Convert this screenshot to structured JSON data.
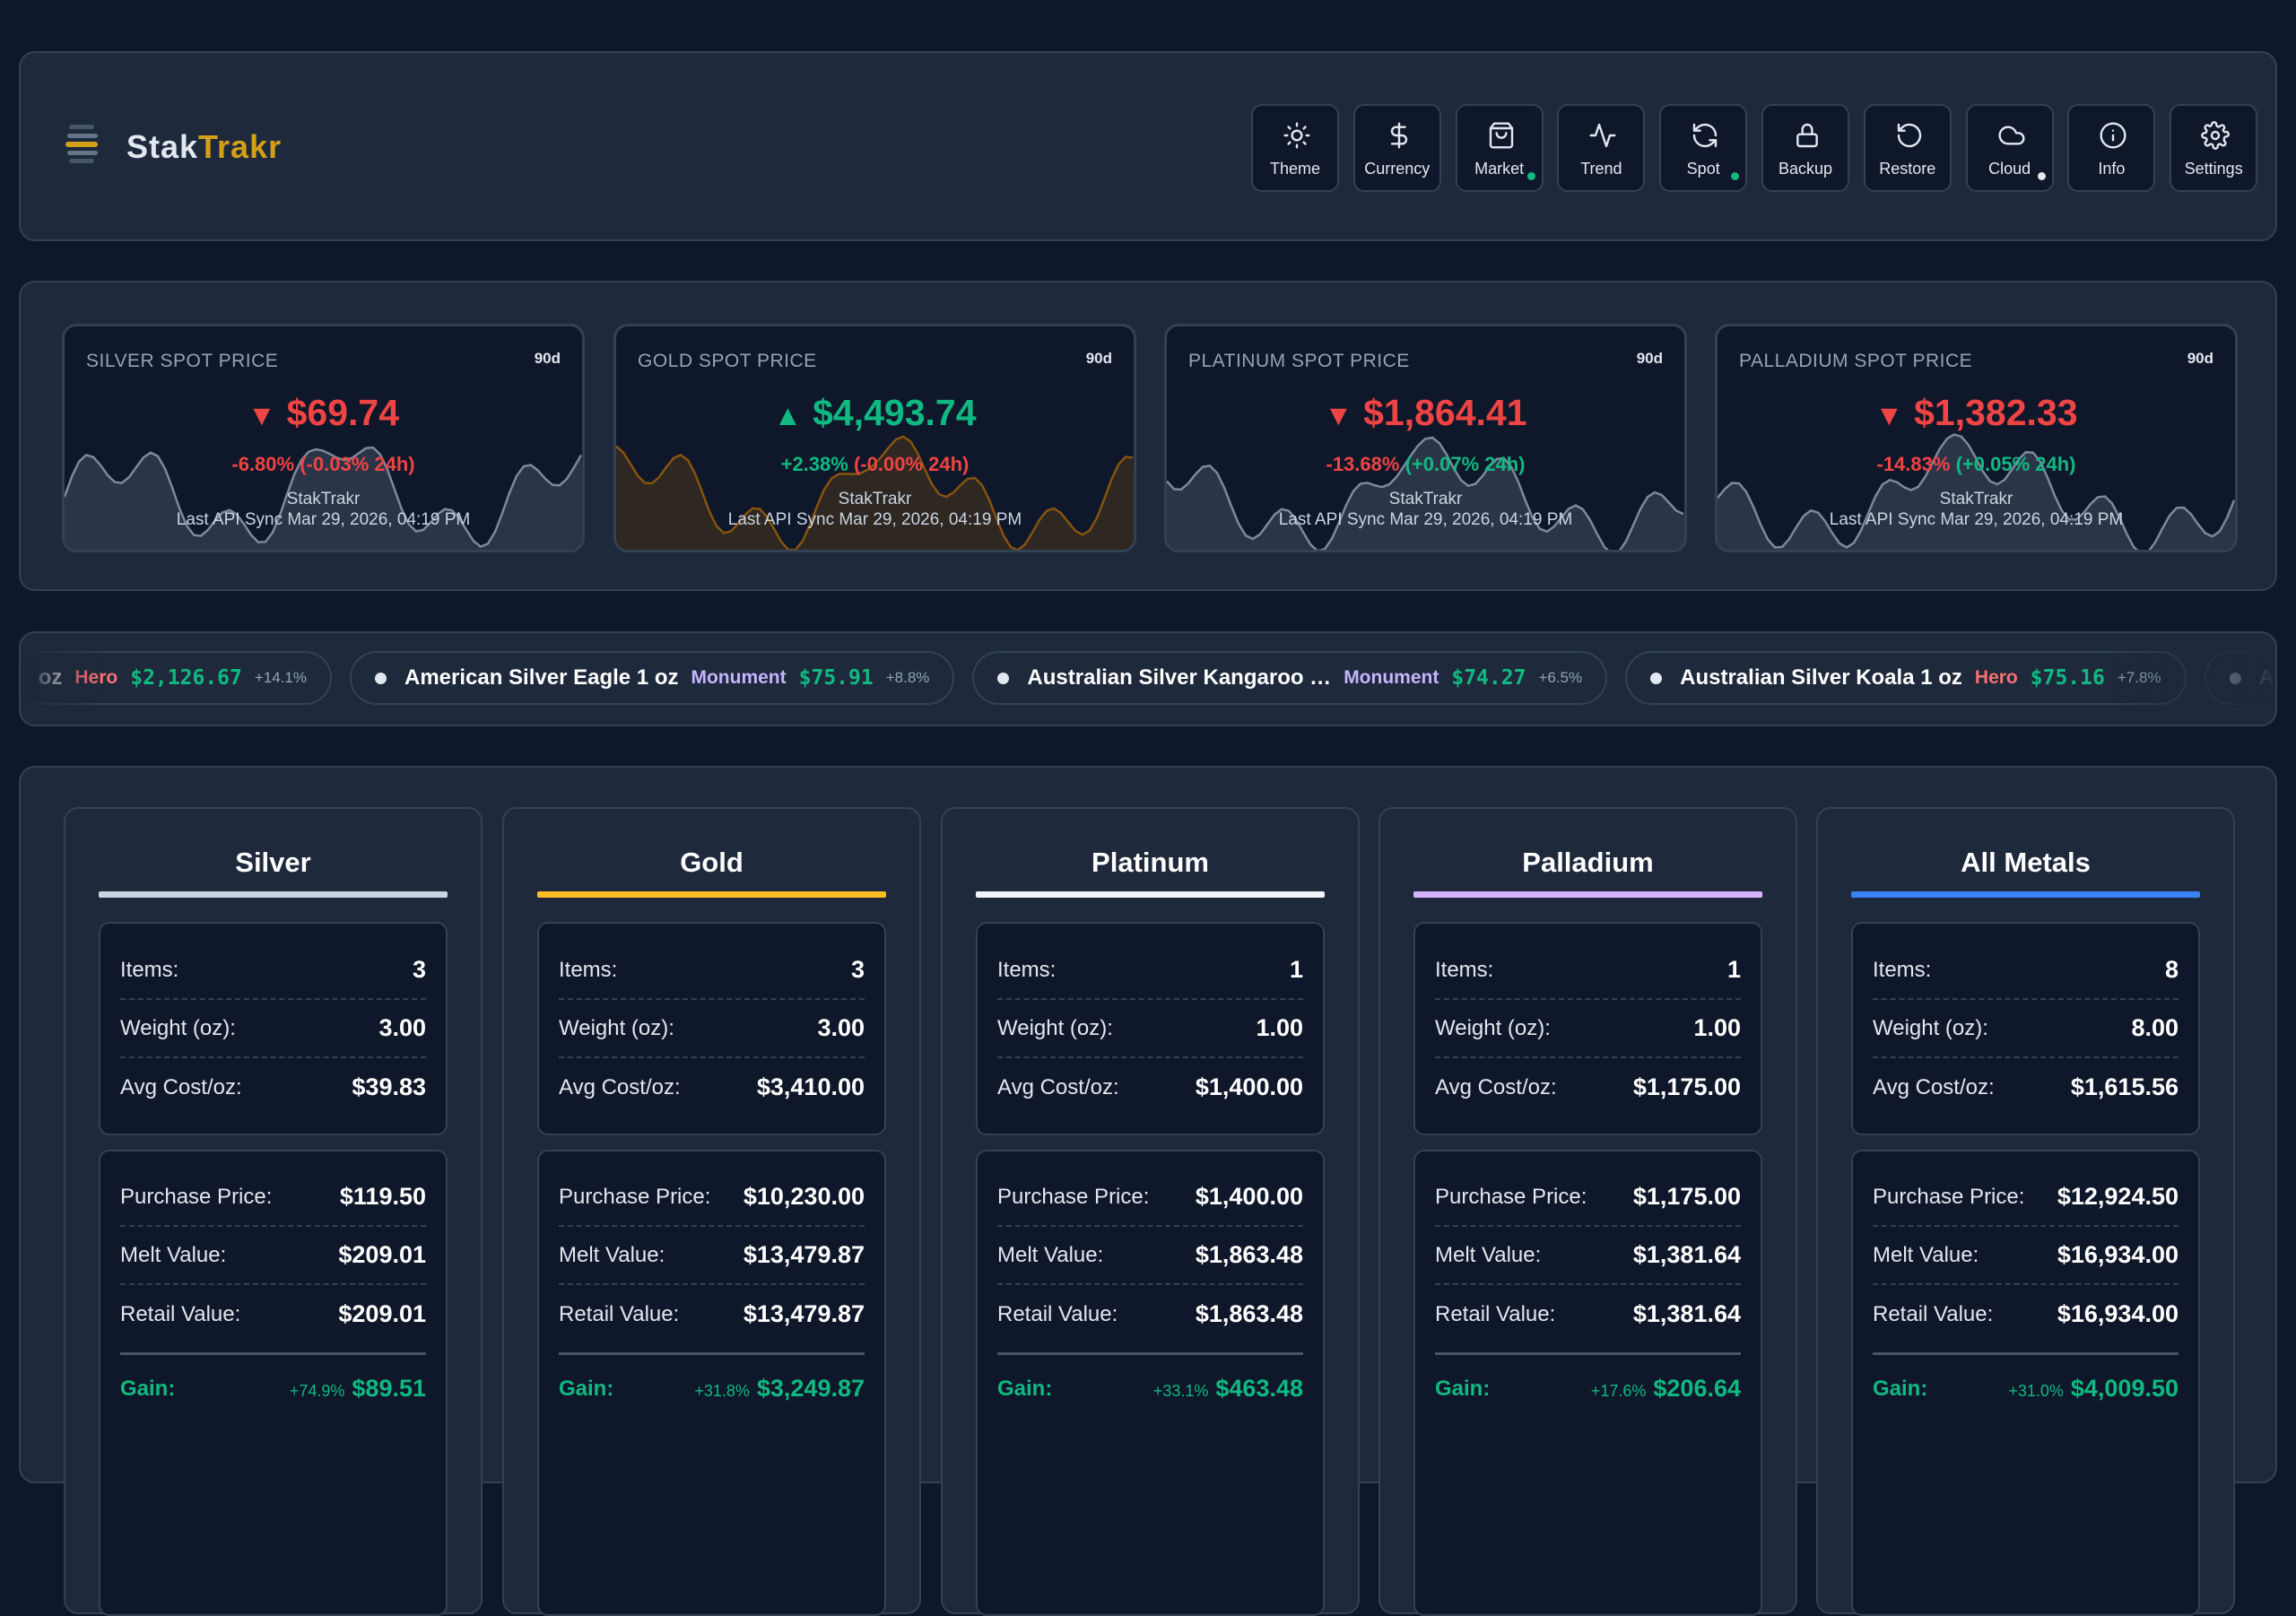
{
  "header": {
    "brand_left": "Stak",
    "brand_right": "Trakr",
    "buttons": [
      "Theme",
      "Currency",
      "Market",
      "Trend",
      "Spot",
      "Backup",
      "Restore",
      "Cloud",
      "Info",
      "Settings"
    ]
  },
  "spot_cards": [
    {
      "title": "SILVER SPOT PRICE",
      "period": "90d",
      "arrow": "▼",
      "price": "$69.74",
      "price_color": "#ef4444",
      "change": "-6.80%",
      "change_color": "#ef4444",
      "change_24h": "(-0.03% 24h)",
      "change_24h_color": "#ef4444",
      "source": "StakTrakr",
      "sync": "Last API Sync Mar 29, 2026, 04:19 PM",
      "spark_color": "#94a3b8"
    },
    {
      "title": "GOLD SPOT PRICE",
      "period": "90d",
      "arrow": "▲",
      "price": "$4,493.74",
      "price_color": "#10b981",
      "change": "+2.38%",
      "change_color": "#10b981",
      "change_24h": "(-0.00% 24h)",
      "change_24h_color": "#ef4444",
      "source": "StakTrakr",
      "sync": "Last API Sync Mar 29, 2026, 04:19 PM",
      "spark_color": "#a16207"
    },
    {
      "title": "PLATINUM SPOT PRICE",
      "period": "90d",
      "arrow": "▼",
      "price": "$1,864.41",
      "price_color": "#ef4444",
      "change": "-13.68%",
      "change_color": "#ef4444",
      "change_24h": "(+0.07% 24h)",
      "change_24h_color": "#10b981",
      "source": "StakTrakr",
      "sync": "Last API Sync Mar 29, 2026, 04:19 PM",
      "spark_color": "#94a3b8"
    },
    {
      "title": "PALLADIUM SPOT PRICE",
      "period": "90d",
      "arrow": "▼",
      "price": "$1,382.33",
      "price_color": "#ef4444",
      "change": "-14.83%",
      "change_color": "#ef4444",
      "change_24h": "(+0.05% 24h)",
      "change_24h_color": "#10b981",
      "source": "StakTrakr",
      "sync": "Last API Sync Mar 29, 2026, 04:19 PM",
      "spark_color": "#94a3b8"
    }
  ],
  "ticker": [
    {
      "name": "oz",
      "label": "Hero",
      "label_color": "#f87171",
      "price": "$2,126.67",
      "change": "+14.1%"
    },
    {
      "name": "American Silver Eagle 1 oz",
      "label": "Monument",
      "label_color": "#c4b5fd",
      "price": "$75.91",
      "change": "+8.8%"
    },
    {
      "name": "Australian Silver Kangaroo …",
      "label": "Monument",
      "label_color": "#c4b5fd",
      "price": "$74.27",
      "change": "+6.5%"
    },
    {
      "name": "Australian Silver Koala 1 oz",
      "label": "Hero",
      "label_color": "#f87171",
      "price": "$75.16",
      "change": "+7.8%"
    },
    {
      "name": "Aus"
    }
  ],
  "summary": [
    {
      "title": "Silver",
      "color": "#cbd5e1",
      "stats": [
        {
          "label": "Items:",
          "value": "3"
        },
        {
          "label": "Weight (oz):",
          "value": "3.00"
        },
        {
          "label": "Avg Cost/oz:",
          "value": "$39.83"
        }
      ],
      "values": [
        {
          "label": "Purchase Price:",
          "value": "$119.50"
        },
        {
          "label": "Melt Value:",
          "value": "$209.01"
        },
        {
          "label": "Retail Value:",
          "value": "$209.01"
        }
      ],
      "gain": {
        "label": "Gain:",
        "pct": "+74.9%",
        "value": "$89.51"
      }
    },
    {
      "title": "Gold",
      "color": "#fbbf24",
      "stats": [
        {
          "label": "Items:",
          "value": "3"
        },
        {
          "label": "Weight (oz):",
          "value": "3.00"
        },
        {
          "label": "Avg Cost/oz:",
          "value": "$3,410.00"
        }
      ],
      "values": [
        {
          "label": "Purchase Price:",
          "value": "$10,230.00"
        },
        {
          "label": "Melt Value:",
          "value": "$13,479.87"
        },
        {
          "label": "Retail Value:",
          "value": "$13,479.87"
        }
      ],
      "gain": {
        "label": "Gain:",
        "pct": "+31.8%",
        "value": "$3,249.87"
      }
    },
    {
      "title": "Platinum",
      "color": "#f1f5f9",
      "stats": [
        {
          "label": "Items:",
          "value": "1"
        },
        {
          "label": "Weight (oz):",
          "value": "1.00"
        },
        {
          "label": "Avg Cost/oz:",
          "value": "$1,400.00"
        }
      ],
      "values": [
        {
          "label": "Purchase Price:",
          "value": "$1,400.00"
        },
        {
          "label": "Melt Value:",
          "value": "$1,863.48"
        },
        {
          "label": "Retail Value:",
          "value": "$1,863.48"
        }
      ],
      "gain": {
        "label": "Gain:",
        "pct": "+33.1%",
        "value": "$463.48"
      }
    },
    {
      "title": "Palladium",
      "color": "#d8b4fe",
      "stats": [
        {
          "label": "Items:",
          "value": "1"
        },
        {
          "label": "Weight (oz):",
          "value": "1.00"
        },
        {
          "label": "Avg Cost/oz:",
          "value": "$1,175.00"
        }
      ],
      "values": [
        {
          "label": "Purchase Price:",
          "value": "$1,175.00"
        },
        {
          "label": "Melt Value:",
          "value": "$1,381.64"
        },
        {
          "label": "Retail Value:",
          "value": "$1,381.64"
        }
      ],
      "gain": {
        "label": "Gain:",
        "pct": "+17.6%",
        "value": "$206.64"
      }
    },
    {
      "title": "All Metals",
      "color": "#3b82f6",
      "stats": [
        {
          "label": "Items:",
          "value": "8"
        },
        {
          "label": "Weight (oz):",
          "value": "8.00"
        },
        {
          "label": "Avg Cost/oz:",
          "value": "$1,615.56"
        }
      ],
      "values": [
        {
          "label": "Purchase Price:",
          "value": "$12,924.50"
        },
        {
          "label": "Melt Value:",
          "value": "$16,934.00"
        },
        {
          "label": "Retail Value:",
          "value": "$16,934.00"
        }
      ],
      "gain": {
        "label": "Gain:",
        "pct": "+31.0%",
        "value": "$4,009.50"
      }
    }
  ]
}
